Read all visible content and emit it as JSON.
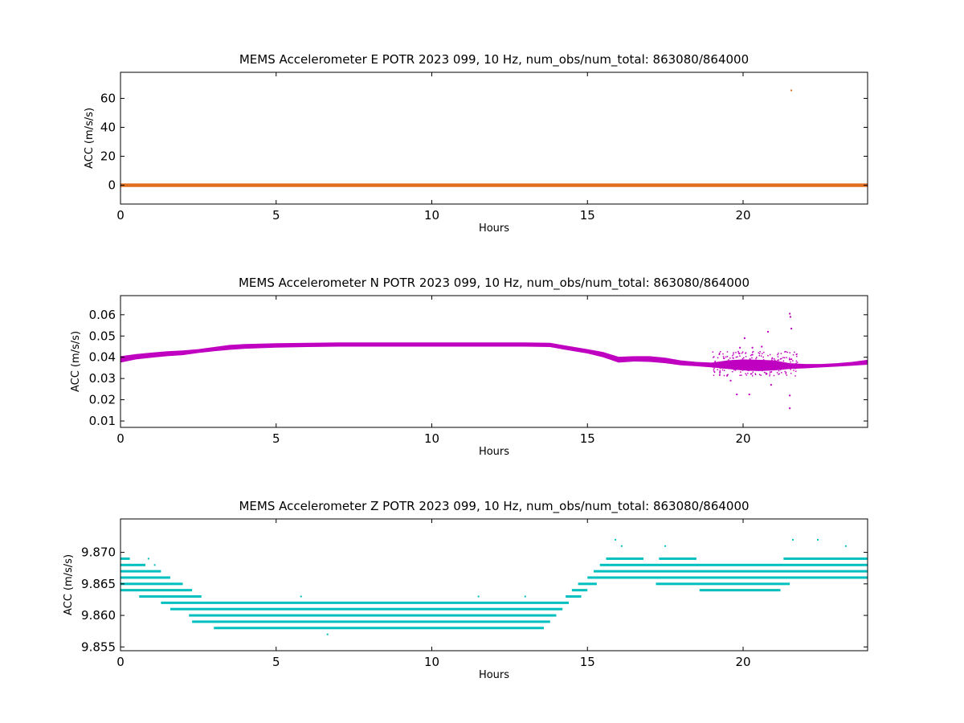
{
  "chart_data": [
    {
      "type": "scatter",
      "title": "MEMS Accelerometer E POTR 2023 099, 10 Hz, num_obs/num_total: 863080/864000",
      "xlabel": "Hours",
      "ylabel": "ACC (m/s/s)",
      "xlim": [
        0,
        24
      ],
      "ylim": [
        -13,
        78
      ],
      "xticks": [
        "0",
        "5",
        "10",
        "15",
        "20"
      ],
      "yticks": [
        "0",
        "20",
        "40",
        "60"
      ],
      "grid": false,
      "color": "#e07020",
      "series": [
        {
          "band": {
            "x": [
              0,
              24
            ],
            "y": [
              -0.4,
              0.4
            ]
          },
          "outliers": [
            {
              "x": 21.55,
              "y": 65.5
            }
          ]
        }
      ]
    },
    {
      "type": "scatter",
      "title": "MEMS Accelerometer N POTR 2023 099, 10 Hz, num_obs/num_total: 863080/864000",
      "xlabel": "Hours",
      "ylabel": "ACC (m/s/s)",
      "xlim": [
        0,
        24
      ],
      "ylim": [
        0.007,
        0.069
      ],
      "xticks": [
        "0",
        "5",
        "10",
        "15",
        "20"
      ],
      "yticks": [
        "0.01",
        "0.02",
        "0.03",
        "0.04",
        "0.05",
        "0.06"
      ],
      "grid": false,
      "color": "#c000c0",
      "series": [
        {
          "x": [
            0,
            0.5,
            1,
            1.5,
            2,
            2.5,
            3,
            3.5,
            4,
            5,
            6,
            7,
            8,
            9,
            10,
            11,
            12,
            13,
            13.8,
            14.3,
            15,
            15.5,
            16,
            16.5,
            17,
            17.5,
            18,
            18.5,
            19,
            19.5,
            20,
            20.5,
            21,
            21.5,
            22,
            22.5,
            23,
            23.5,
            24
          ],
          "lo": [
            0.0375,
            0.039,
            0.0398,
            0.0405,
            0.041,
            0.042,
            0.0428,
            0.0435,
            0.044,
            0.0445,
            0.0448,
            0.045,
            0.045,
            0.045,
            0.045,
            0.045,
            0.045,
            0.045,
            0.0448,
            0.0435,
            0.0418,
            0.04,
            0.0375,
            0.038,
            0.0378,
            0.0372,
            0.0362,
            0.0358,
            0.0352,
            0.0345,
            0.0338,
            0.0335,
            0.0338,
            0.0345,
            0.0348,
            0.0352,
            0.0356,
            0.036,
            0.0365
          ],
          "hi": [
            0.0405,
            0.0415,
            0.0422,
            0.0428,
            0.0432,
            0.0438,
            0.0448,
            0.0458,
            0.0462,
            0.0466,
            0.0468,
            0.047,
            0.047,
            0.047,
            0.047,
            0.047,
            0.047,
            0.047,
            0.0468,
            0.0455,
            0.0438,
            0.0425,
            0.0402,
            0.0405,
            0.0405,
            0.0398,
            0.0385,
            0.0378,
            0.0375,
            0.0385,
            0.039,
            0.0388,
            0.0385,
            0.0372,
            0.0368,
            0.0368,
            0.0372,
            0.0378,
            0.0388
          ]
        }
      ],
      "outliers": [
        {
          "x": 19.8,
          "y": 0.0225
        },
        {
          "x": 20.05,
          "y": 0.049
        },
        {
          "x": 20.2,
          "y": 0.0225
        },
        {
          "x": 20.8,
          "y": 0.052
        },
        {
          "x": 21.5,
          "y": 0.0605
        },
        {
          "x": 21.52,
          "y": 0.059
        },
        {
          "x": 21.55,
          "y": 0.0535
        },
        {
          "x": 21.5,
          "y": 0.016
        },
        {
          "x": 21.5,
          "y": 0.022
        },
        {
          "x": 19.9,
          "y": 0.0445
        },
        {
          "x": 20.3,
          "y": 0.0445
        },
        {
          "x": 20.6,
          "y": 0.045
        },
        {
          "x": 20.9,
          "y": 0.027
        },
        {
          "x": 19.6,
          "y": 0.029
        }
      ]
    },
    {
      "type": "scatter",
      "title": "MEMS Accelerometer Z POTR 2023 099, 10 Hz, num_obs/num_total: 863080/864000",
      "xlabel": "Hours",
      "ylabel": "ACC (m/s/s)",
      "xlim": [
        0,
        24
      ],
      "ylim": [
        9.8544,
        9.8753
      ],
      "xticks": [
        "0",
        "5",
        "10",
        "15",
        "20"
      ],
      "yticks": [
        "9.855",
        "9.860",
        "9.865",
        "9.870"
      ],
      "grid": false,
      "color": "#00bfbf",
      "series": [
        {
          "levels": [
            {
              "y": 9.869,
              "segments": [
                [
                  0,
                  0.3
                ],
                [
                  15.6,
                  16.8
                ],
                [
                  17.3,
                  18.5
                ],
                [
                  21.3,
                  24
                ]
              ]
            },
            {
              "y": 9.868,
              "segments": [
                [
                  0,
                  0.8
                ],
                [
                  15.4,
                  24
                ]
              ]
            },
            {
              "y": 9.867,
              "segments": [
                [
                  0,
                  1.3
                ],
                [
                  15.2,
                  24
                ]
              ]
            },
            {
              "y": 9.866,
              "segments": [
                [
                  0,
                  1.6
                ],
                [
                  15.0,
                  24
                ]
              ]
            },
            {
              "y": 9.865,
              "segments": [
                [
                  0,
                  2.0
                ],
                [
                  14.7,
                  15.3
                ],
                [
                  17.2,
                  21.5
                ]
              ]
            },
            {
              "y": 9.864,
              "segments": [
                [
                  0,
                  2.3
                ],
                [
                  14.5,
                  15.0
                ],
                [
                  18.6,
                  21.2
                ]
              ]
            },
            {
              "y": 9.863,
              "segments": [
                [
                  0.6,
                  2.6
                ],
                [
                  14.3,
                  14.8
                ]
              ]
            },
            {
              "y": 9.862,
              "segments": [
                [
                  1.3,
                  14.4
                ]
              ]
            },
            {
              "y": 9.861,
              "segments": [
                [
                  1.6,
                  14.2
                ]
              ]
            },
            {
              "y": 9.86,
              "segments": [
                [
                  2.2,
                  14.0
                ]
              ]
            },
            {
              "y": 9.859,
              "segments": [
                [
                  2.3,
                  13.8
                ]
              ]
            },
            {
              "y": 9.858,
              "segments": [
                [
                  3.0,
                  13.6
                ]
              ]
            }
          ]
        }
      ],
      "outliers": [
        {
          "x": 6.65,
          "y": 9.857
        },
        {
          "x": 15.9,
          "y": 9.872
        },
        {
          "x": 16.1,
          "y": 9.871
        },
        {
          "x": 17.5,
          "y": 9.871
        },
        {
          "x": 21.6,
          "y": 9.872
        },
        {
          "x": 22.4,
          "y": 9.872
        },
        {
          "x": 23.3,
          "y": 9.871
        },
        {
          "x": 0.9,
          "y": 9.869
        },
        {
          "x": 1.1,
          "y": 9.868
        },
        {
          "x": 13.0,
          "y": 9.863
        },
        {
          "x": 5.8,
          "y": 9.863
        },
        {
          "x": 11.5,
          "y": 9.863
        }
      ]
    }
  ]
}
